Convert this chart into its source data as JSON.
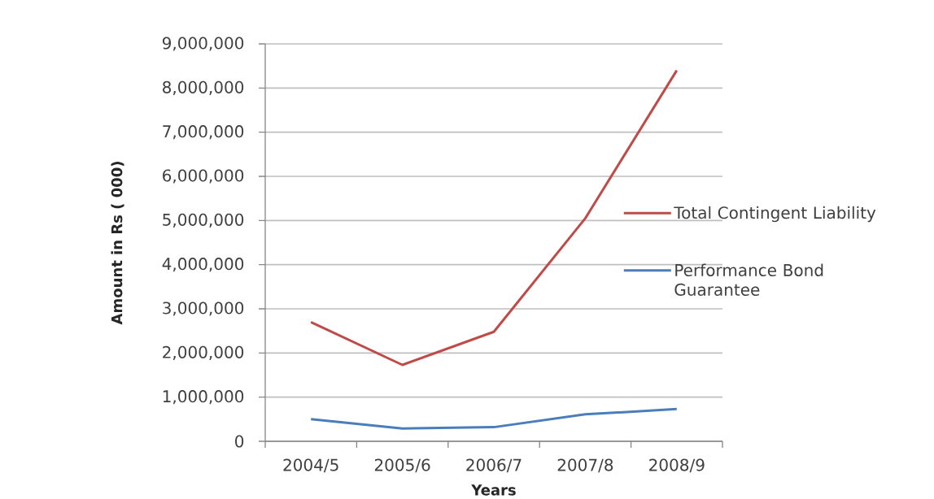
{
  "chart_data": {
    "type": "line",
    "xlabel": "Years",
    "ylabel": "Amount in Rs ( 000)",
    "categories": [
      "2004/5",
      "2005/6",
      "2006/7",
      "2007/8",
      "2008/9"
    ],
    "series": [
      {
        "name": "Total Contingent Liability",
        "color": "#be4b48",
        "values": [
          2700000,
          1730000,
          2480000,
          5050000,
          8400000
        ]
      },
      {
        "name": "Performance Bond Guarantee",
        "color": "#4a7ebb",
        "values": [
          500000,
          290000,
          320000,
          610000,
          730000
        ]
      }
    ],
    "ylim": [
      0,
      9000000
    ],
    "yticks": [
      0,
      {
        "value": 1000000,
        "label": "1,000,000"
      },
      {
        "value": 2000000,
        "label": "2,000,000"
      },
      {
        "value": 3000000,
        "label": "3,000,000"
      },
      {
        "value": 4000000,
        "label": "4,000,000"
      },
      {
        "value": 5000000,
        "label": "5,000,000"
      },
      {
        "value": 6000000,
        "label": "6,000,000"
      },
      {
        "value": 7000000,
        "label": "7,000,000"
      },
      {
        "value": 8000000,
        "label": "8,000,000"
      },
      {
        "value": 9000000,
        "label": "9,000,000"
      }
    ],
    "grid": "y",
    "legend": "right"
  }
}
